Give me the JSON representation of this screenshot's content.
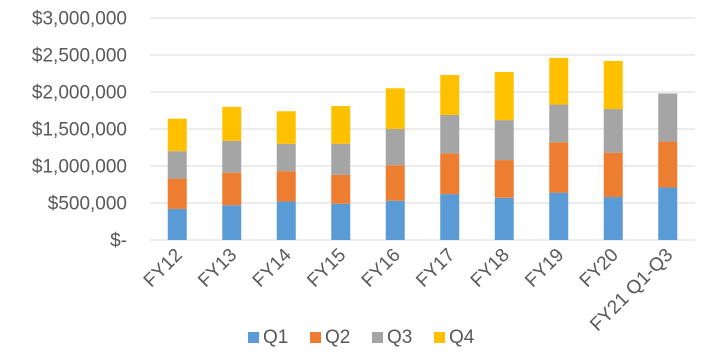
{
  "chart_data": {
    "type": "bar",
    "stacked": true,
    "categories": [
      "FY12",
      "FY13",
      "FY14",
      "FY15",
      "FY16",
      "FY17",
      "FY18",
      "FY19",
      "FY20",
      "FY21 Q1-Q3"
    ],
    "series": [
      {
        "name": "Q1",
        "color": "#5B9BD5",
        "values": [
          420000,
          470000,
          520000,
          490000,
          530000,
          620000,
          570000,
          640000,
          580000,
          710000
        ]
      },
      {
        "name": "Q2",
        "color": "#ED7D31",
        "values": [
          410000,
          440000,
          410000,
          390000,
          480000,
          550000,
          510000,
          680000,
          600000,
          620000
        ]
      },
      {
        "name": "Q3",
        "color": "#A5A5A5",
        "values": [
          370000,
          430000,
          370000,
          420000,
          490000,
          520000,
          540000,
          510000,
          590000,
          650000
        ]
      },
      {
        "name": "Q4",
        "color": "#FFC000",
        "values": [
          440000,
          460000,
          440000,
          510000,
          550000,
          540000,
          650000,
          630000,
          650000,
          0
        ]
      }
    ],
    "y_ticks": [
      {
        "value": 0,
        "label": "$-"
      },
      {
        "value": 500000,
        "label": "$500,000"
      },
      {
        "value": 1000000,
        "label": "$1,000,000"
      },
      {
        "value": 1500000,
        "label": "$1,500,000"
      },
      {
        "value": 2000000,
        "label": "$2,000,000"
      },
      {
        "value": 2500000,
        "label": "$2,500,000"
      },
      {
        "value": 3000000,
        "label": "$3,000,000"
      }
    ],
    "ylim": [
      0,
      3000000
    ],
    "grid": true,
    "legend_position": "bottom",
    "title": "",
    "xlabel": "",
    "ylabel": ""
  }
}
